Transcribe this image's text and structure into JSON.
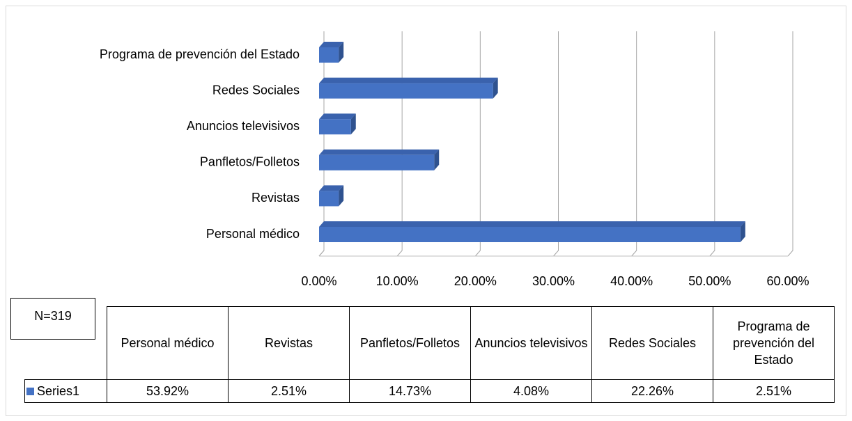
{
  "chart_data": {
    "type": "bar",
    "orientation": "horizontal",
    "categories": [
      "Personal médico",
      "Revistas",
      "Panfletos/Folletos",
      "Anuncios televisivos",
      "Redes Sociales",
      "Programa de prevención del Estado"
    ],
    "series": [
      {
        "name": "Series1",
        "color": "#4472c4",
        "values": [
          53.92,
          2.51,
          14.73,
          4.08,
          22.26,
          2.51
        ],
        "value_labels": [
          "53.92%",
          "2.51%",
          "14.73%",
          "4.08%",
          "22.26%",
          "2.51%"
        ]
      }
    ],
    "xlim": [
      0,
      60
    ],
    "xticks": [
      {
        "value": 0,
        "label": "0.00%"
      },
      {
        "value": 10,
        "label": "10.00%"
      },
      {
        "value": 20,
        "label": "20.00%"
      },
      {
        "value": 30,
        "label": "30.00%"
      },
      {
        "value": 40,
        "label": "40.00%"
      },
      {
        "value": 50,
        "label": "50.00%"
      },
      {
        "value": 60,
        "label": "60.00%"
      }
    ],
    "grid": true,
    "data_table": true,
    "annotation": "N=319"
  }
}
